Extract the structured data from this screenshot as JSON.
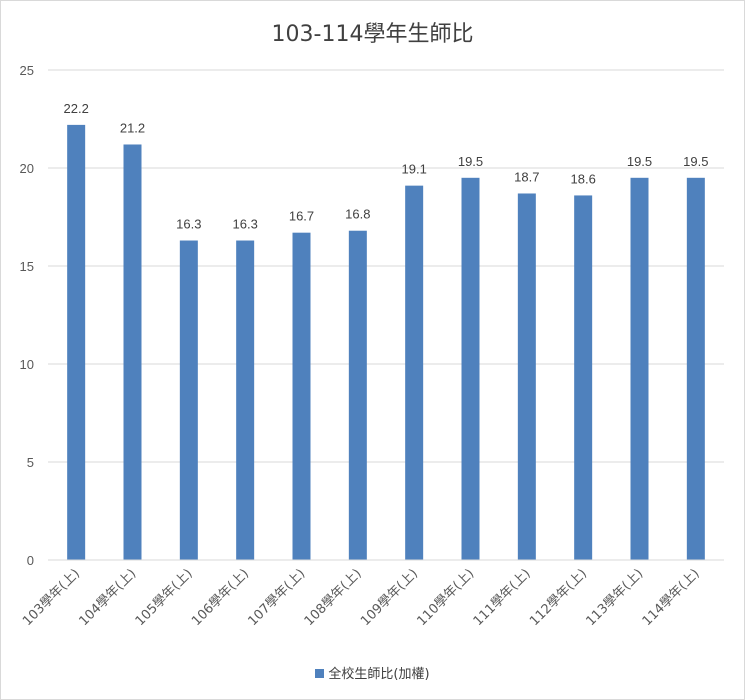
{
  "chart_data": {
    "type": "bar",
    "title": "103-114學年生師比",
    "categories": [
      "103學年(上)",
      "104學年(上)",
      "105學年(上)",
      "106學年(上)",
      "107學年(上)",
      "108學年(上)",
      "109學年(上)",
      "110學年(上)",
      "111學年(上)",
      "112學年(上)",
      "113學年(上)",
      "114學年(上)"
    ],
    "series": [
      {
        "name": "全校生師比(加權)",
        "values": [
          22.2,
          21.2,
          16.3,
          16.3,
          16.7,
          16.8,
          19.1,
          19.5,
          18.7,
          18.6,
          19.5,
          19.5
        ]
      }
    ],
    "ylim": [
      0,
      25
    ],
    "yticks": [
      0,
      5,
      10,
      15,
      20,
      25
    ],
    "grid": true,
    "legend": "bottom",
    "bar_color": "#4f81bd",
    "grid_color": "#d9d9d9",
    "text_color": "#595959"
  }
}
